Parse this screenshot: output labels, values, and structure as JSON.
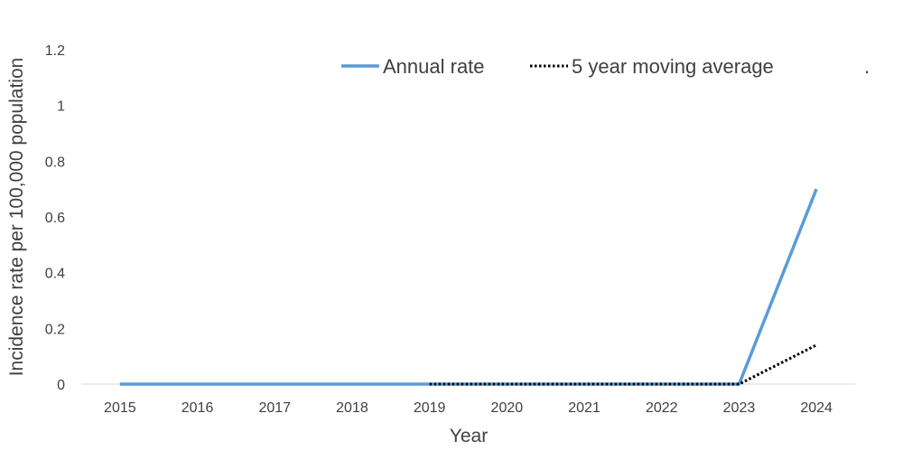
{
  "chart_data": {
    "type": "line",
    "title": "",
    "xlabel": "Year",
    "ylabel": "Incidence rate per 100,000 population",
    "categories": [
      "2015",
      "2016",
      "2017",
      "2018",
      "2019",
      "2020",
      "2021",
      "2022",
      "2023",
      "2024"
    ],
    "ylim": [
      0,
      1.2
    ],
    "yticks": [
      "0",
      "0.2",
      "0.4",
      "0.6",
      "0.8",
      "1",
      "1.2"
    ],
    "grid": false,
    "legend_position": "top",
    "legend_extra": ".",
    "series": [
      {
        "name": "Annual rate",
        "style": "solid",
        "color": "#5B9BD5",
        "values": [
          0,
          0,
          0,
          0,
          0,
          0,
          0,
          0,
          0,
          0.7
        ]
      },
      {
        "name": "5 year moving average",
        "style": "dotted",
        "color": "#000000",
        "values": [
          null,
          null,
          null,
          null,
          0,
          0,
          0,
          0,
          0,
          0.14
        ]
      }
    ]
  }
}
